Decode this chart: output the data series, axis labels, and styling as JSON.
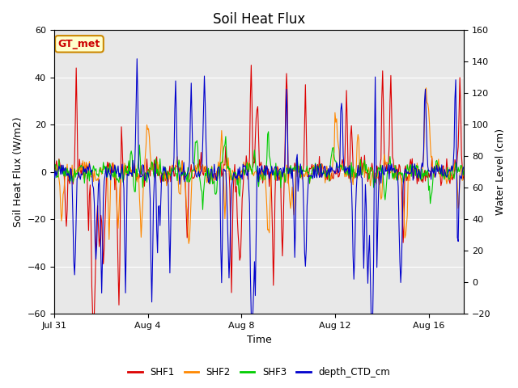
{
  "title": "Soil Heat Flux",
  "ylabel_left": "Soil Heat Flux (W/m2)",
  "ylabel_right": "Water Level (cm)",
  "xlabel": "Time",
  "ylim_left": [
    -60,
    60
  ],
  "ylim_right": [
    -20,
    160
  ],
  "fig_bg_color": "#ffffff",
  "plot_bg_color": "#e8e8e8",
  "grid_color": "#ffffff",
  "annotation_text": "GT_met",
  "annotation_color": "#cc0000",
  "annotation_bg": "#ffffcc",
  "annotation_border": "#cc8800",
  "series": {
    "SHF1": {
      "color": "#dd0000",
      "lw": 0.8
    },
    "SHF2": {
      "color": "#ff8800",
      "lw": 0.8
    },
    "SHF3": {
      "color": "#00cc00",
      "lw": 0.8
    },
    "depth_CTD_cm": {
      "color": "#0000cc",
      "lw": 0.8
    }
  },
  "legend_colors": {
    "SHF1": "#dd0000",
    "SHF2": "#ff8800",
    "SHF3": "#00cc00",
    "depth_CTD_cm": "#0000cc"
  },
  "x_tick_labels": [
    "Jul 31",
    "Aug 4",
    "Aug 8",
    "Aug 12",
    "Aug 16"
  ],
  "x_tick_positions": [
    0,
    4,
    8,
    12,
    16
  ],
  "x_range_days": 17.5,
  "n_points": 500,
  "seed": 42
}
